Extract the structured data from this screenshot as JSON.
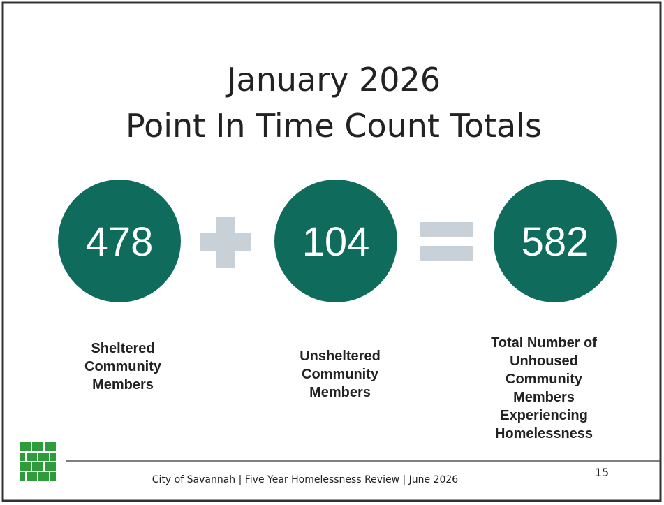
{
  "title": [
    "January 2026",
    "Point In Time Count Totals"
  ],
  "stats": [
    {
      "value": 478,
      "label": [
        "Sheltered",
        "Community",
        "Members"
      ]
    },
    {
      "value": 104,
      "label": [
        "Unsheltered",
        "Community",
        "Members"
      ]
    },
    {
      "value": 582,
      "label": [
        "Total Number of",
        "Unhoused",
        "Community",
        "Members",
        "Experiencing",
        "Homelessness"
      ]
    }
  ],
  "footer": "City of Savannah | Five Year Homelessness Review | June 2026",
  "page_number": "15"
}
